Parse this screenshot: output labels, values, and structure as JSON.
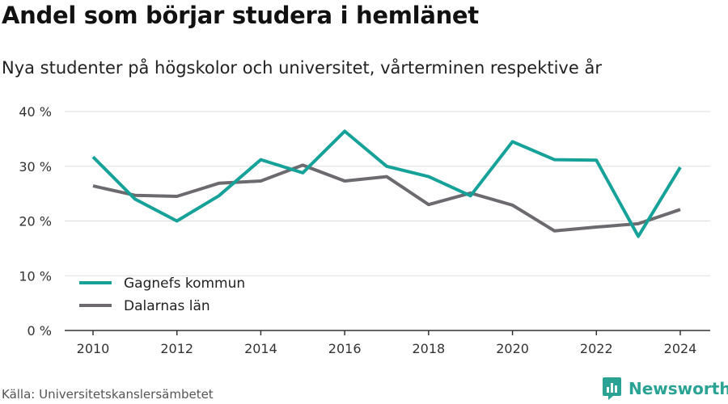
{
  "header": {
    "title": "Andel som börjar studera i hemlänet",
    "subtitle": "Nya studenter på högskolor och universitet, vårterminen respektive år"
  },
  "footer": {
    "source": "Källa: Universitetskanslersämbetet",
    "brand": "Newsworthy"
  },
  "colors": {
    "gagnef": "#16a199",
    "dalarna": "#6c6a6f",
    "grid": "#dddddd",
    "axis": "#333333",
    "brand": "#2aa395"
  },
  "chart_data": {
    "type": "line",
    "x": [
      2010,
      2011,
      2012,
      2013,
      2014,
      2015,
      2016,
      2017,
      2018,
      2019,
      2020,
      2021,
      2022,
      2023,
      2024
    ],
    "series": [
      {
        "name": "Gagnefs kommun",
        "color": "#16a199",
        "values": [
          31.7,
          24.0,
          20.0,
          24.6,
          31.2,
          28.8,
          36.4,
          30.0,
          28.1,
          24.6,
          34.5,
          31.2,
          31.1,
          17.2,
          29.8
        ]
      },
      {
        "name": "Dalarnas län",
        "color": "#6c6a6f",
        "values": [
          26.4,
          24.7,
          24.5,
          26.9,
          27.3,
          30.2,
          27.3,
          28.1,
          23.0,
          25.1,
          22.9,
          18.2,
          18.9,
          19.5,
          22.1
        ]
      }
    ],
    "x_ticks": [
      "2010",
      "2012",
      "2014",
      "2016",
      "2018",
      "2020",
      "2022",
      "2024"
    ],
    "y_ticks": [
      "0 %",
      "10 %",
      "20 %",
      "30 %",
      "40 %"
    ],
    "y_tick_values": [
      0,
      10,
      20,
      30,
      40
    ],
    "ylim": [
      0,
      40
    ],
    "xlim": [
      2010,
      2024
    ],
    "grid": true,
    "legend_position": "bottom-left"
  }
}
